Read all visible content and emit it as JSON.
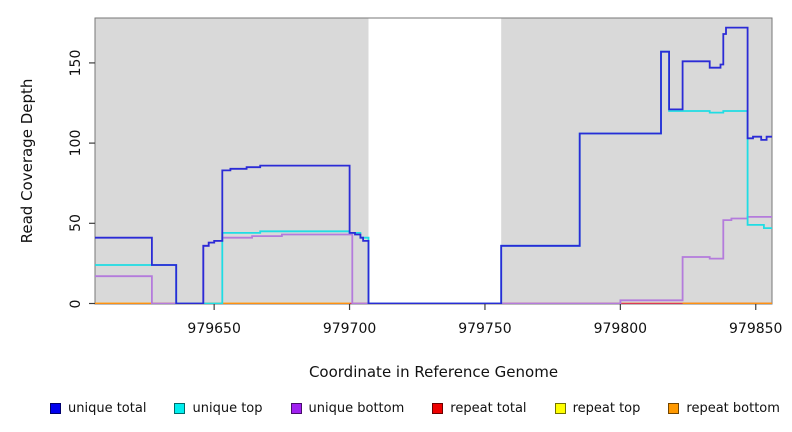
{
  "chart_data": {
    "type": "line",
    "subtype": "step-coverage",
    "title": "",
    "xlabel": "Coordinate in Reference Genome",
    "ylabel": "Read Coverage Depth",
    "x_domain": [
      979606,
      979856
    ],
    "y_domain": [
      0,
      178
    ],
    "x_ticks": [
      979650,
      979700,
      979750,
      979800,
      979850
    ],
    "y_ticks": [
      0,
      50,
      100,
      150
    ],
    "grid": "off",
    "plot_bg": "#D9D9D9",
    "border_color": "#777777",
    "tick_color": "#3d3d3d",
    "gap_band": {
      "from": 979707,
      "to": 979756,
      "color": "#FFFFFF"
    },
    "legend_position": "bottom",
    "series": [
      {
        "name": "unique total",
        "color": "#2B2BD6",
        "legend_color": "#0000EE",
        "z": 6,
        "width": 1.8,
        "segments": [
          [
            [
              979606,
              41
            ],
            [
              979627,
              24
            ],
            [
              979636,
              0
            ],
            [
              979646,
              36
            ],
            [
              979648,
              38
            ],
            [
              979650,
              39
            ],
            [
              979653,
              83
            ],
            [
              979656,
              84
            ],
            [
              979662,
              85
            ],
            [
              979667,
              86
            ],
            [
              979700,
              44
            ],
            [
              979702,
              43
            ],
            [
              979704,
              41
            ],
            [
              979705,
              39
            ],
            [
              979707,
              0
            ],
            [
              979756,
              36
            ],
            [
              979785,
              106
            ],
            [
              979815,
              157
            ],
            [
              979818,
              121
            ],
            [
              979823,
              151
            ],
            [
              979833,
              147
            ],
            [
              979837,
              149
            ],
            [
              979838,
              168
            ],
            [
              979839,
              172
            ],
            [
              979847,
              103
            ],
            [
              979849,
              104
            ],
            [
              979852,
              102
            ],
            [
              979854,
              104
            ],
            [
              979856,
              104
            ]
          ]
        ]
      },
      {
        "name": "unique top",
        "color": "#1FDDE4",
        "legend_color": "#00EEEE",
        "z": 5,
        "width": 1.8,
        "segments": [
          [
            [
              979606,
              24
            ],
            [
              979636,
              0
            ],
            [
              979653,
              44
            ],
            [
              979667,
              45
            ],
            [
              979700,
              44
            ],
            [
              979704,
              41
            ],
            [
              979707,
              0
            ],
            [
              979756,
              36
            ],
            [
              979785,
              106
            ],
            [
              979815,
              157
            ],
            [
              979818,
              120
            ],
            [
              979833,
              119
            ],
            [
              979838,
              120
            ],
            [
              979847,
              49
            ],
            [
              979853,
              47
            ],
            [
              979856,
              47
            ]
          ]
        ]
      },
      {
        "name": "unique bottom",
        "color": "#B47BDC",
        "legend_color": "#A020F0",
        "z": 4,
        "width": 1.8,
        "segments": [
          [
            [
              979606,
              17
            ],
            [
              979627,
              0
            ],
            [
              979646,
              36
            ],
            [
              979648,
              38
            ],
            [
              979650,
              39
            ],
            [
              979653,
              41
            ],
            [
              979664,
              42
            ],
            [
              979675,
              43
            ],
            [
              979701,
              0
            ],
            [
              979800,
              2
            ],
            [
              979823,
              29
            ],
            [
              979833,
              28
            ],
            [
              979838,
              52
            ],
            [
              979841,
              53
            ],
            [
              979847,
              54
            ],
            [
              979856,
              54
            ]
          ]
        ]
      },
      {
        "name": "repeat total",
        "color": "#DC3A56",
        "legend_color": "#EE0000",
        "z": 2,
        "width": 1.6,
        "segments": [
          [
            [
              979700,
              0
            ],
            [
              979856,
              0
            ]
          ]
        ]
      },
      {
        "name": "repeat top",
        "color": "#FFFF00",
        "legend_color": "#FFFF00",
        "z": 1,
        "width": 1.6,
        "segments": [
          [
            [
              979606,
              0
            ],
            [
              979856,
              0
            ]
          ]
        ]
      },
      {
        "name": "repeat bottom",
        "color": "#FF9012",
        "legend_color": "#FF9900",
        "z": 3,
        "width": 1.8,
        "segments": [
          [
            [
              979606,
              0
            ],
            [
              979700,
              0
            ]
          ],
          [
            [
              979823,
              0
            ],
            [
              979856,
              0
            ]
          ]
        ]
      }
    ]
  }
}
